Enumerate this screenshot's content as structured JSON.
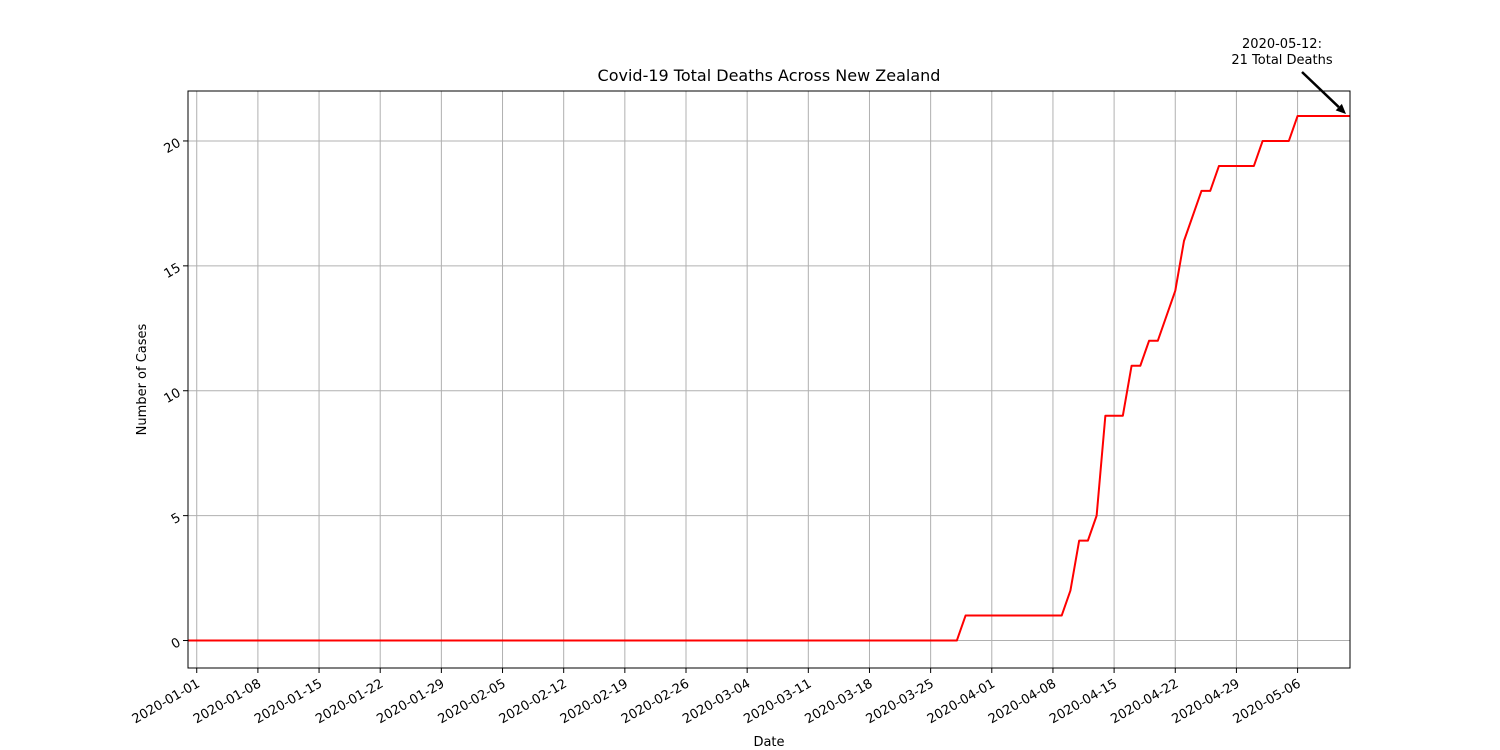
{
  "chart_data": {
    "type": "line",
    "title": "Covid-19 Total Deaths Across New Zealand",
    "xlabel": "Date",
    "ylabel": "Number of Cases",
    "grid": true,
    "x_range": [
      "2019-12-31",
      "2020-05-12"
    ],
    "ylim": [
      -1.1,
      22.0
    ],
    "x_ticks": [
      "2020-01-01",
      "2020-01-08",
      "2020-01-15",
      "2020-01-22",
      "2020-01-29",
      "2020-02-05",
      "2020-02-12",
      "2020-02-19",
      "2020-02-26",
      "2020-03-04",
      "2020-03-11",
      "2020-03-18",
      "2020-03-25",
      "2020-04-01",
      "2020-04-08",
      "2020-04-15",
      "2020-04-22",
      "2020-04-29",
      "2020-05-06"
    ],
    "y_ticks": [
      0,
      5,
      10,
      15,
      20
    ],
    "series": [
      {
        "color": "#ff0000",
        "points": [
          [
            "2019-12-31",
            0
          ],
          [
            "2020-03-28",
            0
          ],
          [
            "2020-03-29",
            1
          ],
          [
            "2020-04-09",
            1
          ],
          [
            "2020-04-10",
            2
          ],
          [
            "2020-04-11",
            4
          ],
          [
            "2020-04-12",
            4
          ],
          [
            "2020-04-13",
            5
          ],
          [
            "2020-04-14",
            9
          ],
          [
            "2020-04-16",
            9
          ],
          [
            "2020-04-17",
            11
          ],
          [
            "2020-04-18",
            11
          ],
          [
            "2020-04-19",
            12
          ],
          [
            "2020-04-20",
            12
          ],
          [
            "2020-04-22",
            14
          ],
          [
            "2020-04-23",
            16
          ],
          [
            "2020-04-25",
            18
          ],
          [
            "2020-04-26",
            18
          ],
          [
            "2020-04-27",
            19
          ],
          [
            "2020-05-01",
            19
          ],
          [
            "2020-05-02",
            20
          ],
          [
            "2020-05-05",
            20
          ],
          [
            "2020-05-06",
            21
          ],
          [
            "2020-05-12",
            21
          ]
        ]
      }
    ],
    "annotation": {
      "line1": "2020-05-12:",
      "line2": "21 Total Deaths",
      "x": "2020-05-12",
      "y": 21,
      "arrow_color": "#000000"
    }
  }
}
